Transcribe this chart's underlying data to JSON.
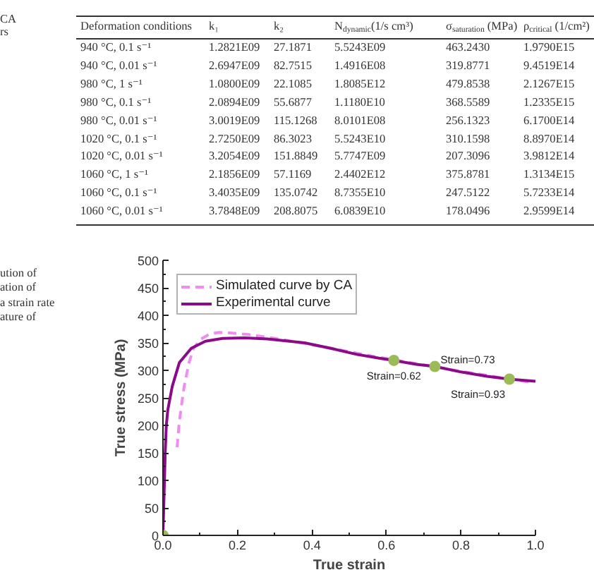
{
  "chart_data": [
    {
      "type": "other",
      "categories": [
        "Deformation conditions",
        "k₁",
        "k₂",
        "N$_{dynamic}$(1/s cm³)",
        "σ$_{saturation}$ (MPa)",
        "ρ$_{critical}$ (1/cm²)"
      ],
      "cell_labels": [
        [
          "940 °C, 0.1 s⁻¹",
          "1.2821E09",
          "27.1871",
          "5.5243E09",
          "463.2430",
          "1.9790E15"
        ],
        [
          "940 °C, 0.01 s⁻¹",
          "2.6947E09",
          "82.7515",
          "1.4916E08",
          "319.8771",
          "9.4519E14"
        ],
        [
          "980 °C, 1 s⁻¹",
          "1.0800E09",
          "22.1085",
          "1.8085E12",
          "479.8538",
          "2.1267E15"
        ],
        [
          "980 °C, 0.1 s⁻¹",
          "2.0894E09",
          "55.6877",
          "1.1180E10",
          "368.5589",
          "1.2335E15"
        ],
        [
          "980 °C, 0.01 s⁻¹",
          "3.0019E09",
          "115.1268",
          "8.0101E08",
          "256.1323",
          "6.1700E14"
        ],
        [
          "1020 °C, 0.1 s⁻¹",
          "2.7250E09",
          "86.3023",
          "5.5243E10",
          "310.1598",
          "8.8970E14"
        ],
        [
          "1020 °C, 0.01 s⁻¹",
          "3.2054E09",
          "151.8849",
          "5.7747E09",
          "207.3096",
          "3.9812E14"
        ],
        [
          "1060 °C, 1 s⁻¹",
          "2.1856E09",
          "57.1169",
          "2.4402E12",
          "375.8781",
          "1.3134E15"
        ],
        [
          "1060 °C, 0.1 s⁻¹",
          "3.4035E09",
          "135.0742",
          "8.7355E10",
          "247.5122",
          "5.7233E14"
        ],
        [
          "1060 °C, 0.01 s⁻¹",
          "3.7848E09",
          "208.8075",
          "6.0839E10",
          "178.0496",
          "2.9599E14"
        ]
      ],
      "annotations": [
        "CA",
        "rs"
      ]
    },
    {
      "type": "line",
      "xlabel": "True strain",
      "ylabel": "True stress (MPa)",
      "legend": "top left",
      "xlim": [
        0,
        1
      ],
      "ylim": [
        0,
        500
      ],
      "xticks": [
        {
          "value": 0,
          "label": "0.0"
        },
        {
          "value": 0.1,
          "label": null
        },
        0.2,
        {
          "value": 0.3,
          "label": null
        },
        0.4,
        {
          "value": 0.5,
          "label": null
        },
        0.6,
        {
          "value": 0.7,
          "label": null
        },
        0.8,
        {
          "value": 0.9,
          "label": null
        },
        {
          "value": 1,
          "label": "1.0"
        }
      ],
      "yticks": [
        0,
        {
          "value": 25,
          "label": null
        },
        50,
        {
          "value": 75,
          "label": null
        },
        100,
        {
          "value": 125,
          "label": null
        },
        150,
        {
          "value": 175,
          "label": null
        },
        200,
        {
          "value": 225,
          "label": null
        },
        250,
        {
          "value": 275,
          "label": null
        },
        300,
        {
          "value": 325,
          "label": null
        },
        350,
        {
          "value": 375,
          "label": null
        },
        400,
        {
          "value": 425,
          "label": null
        },
        450,
        {
          "value": 475,
          "label": null
        },
        500
      ],
      "series": [
        {
          "name": "Simulated curve by CA",
          "type": "line",
          "line_style": "dashed",
          "color": "#f08cf0",
          "x": [
            0.038,
            0.043,
            0.048,
            0.057,
            0.07,
            0.082,
            0.1,
            0.125,
            0.15,
            0.18,
            0.23,
            0.32,
            0.42,
            0.5,
            0.56,
            0.62,
            0.7,
            0.8,
            0.87,
            0.93,
            0.99
          ],
          "values": [
            160,
            200,
            228,
            271,
            314,
            340,
            356,
            366,
            369,
            368,
            365,
            356,
            344,
            334,
            326,
            319,
            310,
            298,
            291,
            284,
            278
          ]
        },
        {
          "name": "Experimental curve",
          "type": "line",
          "line_style": "solid",
          "color": "#8a0a8a",
          "x": [
            0,
            0.002,
            0.004,
            0.006,
            0.009,
            0.013,
            0.025,
            0.044,
            0.076,
            0.114,
            0.16,
            0.22,
            0.28,
            0.38,
            0.45,
            0.52,
            0.58,
            0.62,
            0.68,
            0.73,
            0.8,
            0.87,
            0.93,
            1.0
          ],
          "values": [
            0,
            50,
            100,
            150,
            200,
            228,
            271,
            314,
            340,
            353,
            358,
            359,
            357,
            350,
            340,
            329,
            322,
            318,
            311,
            307,
            297,
            289,
            284,
            280
          ]
        },
        {
          "type": "scatter",
          "marker": "circle",
          "color": "#9bbb59",
          "x": [
            0,
            0.62,
            0.73,
            0.93
          ],
          "values": [
            0,
            318,
            307,
            284
          ]
        }
      ],
      "annotations": [
        {
          "text": "Strain=0.62",
          "x": 0.62,
          "y": 318
        },
        {
          "text": "Strain=0.73",
          "x": 0.73,
          "y": 307
        },
        {
          "text": "Strain=0.93",
          "x": 0.93,
          "y": 284
        },
        "ution of",
        "ation of",
        "a strain rate",
        "ature of"
      ]
    }
  ]
}
